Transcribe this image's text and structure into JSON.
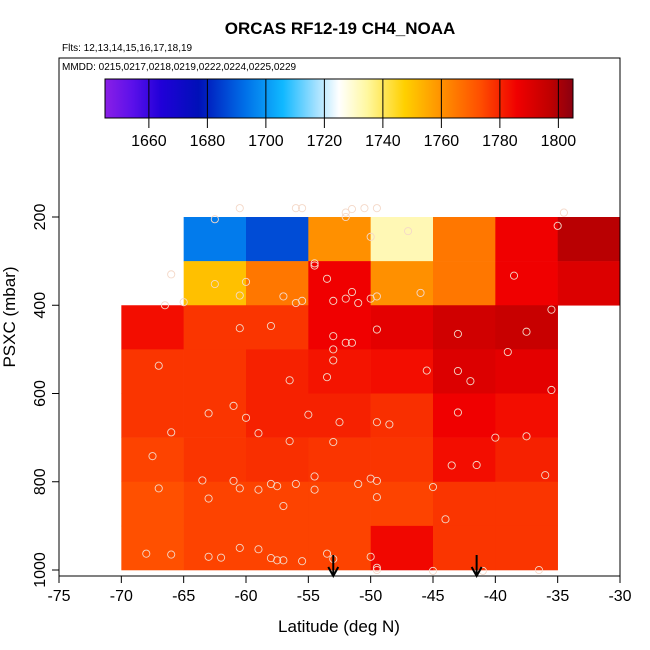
{
  "chart_data": {
    "type": "heatmap",
    "title": "ORCAS RF12-19 CH4_NOAA",
    "subtitle_flights": "Flts: 12,13,14,15,16,17,18,19",
    "subtitle_dates": "MMDD: 0215,0217,0218,0219,0222,0224,0225,0229",
    "xlabel": "Latitude (deg N)",
    "ylabel": "PSXC (mbar)",
    "xlim": [
      -75,
      -30
    ],
    "ylim": [
      1000,
      50
    ],
    "x_ticks": [
      "-75",
      "-70",
      "-65",
      "-60",
      "-55",
      "-50",
      "-45",
      "-40",
      "-35",
      "-30"
    ],
    "x_tick_values": [
      -75,
      -70,
      -65,
      -60,
      -55,
      -50,
      -45,
      -40,
      -35,
      -30
    ],
    "y_ticks": [
      "200",
      "400",
      "600",
      "800",
      "1000"
    ],
    "y_tick_values": [
      200,
      400,
      600,
      800,
      1000
    ],
    "colorbar": {
      "min": 1645,
      "max": 1805,
      "ticks": [
        "1660",
        "1680",
        "1700",
        "1720",
        "1740",
        "1760",
        "1780",
        "1800"
      ],
      "tick_values": [
        1660,
        1680,
        1700,
        1720,
        1740,
        1760,
        1780,
        1800
      ]
    },
    "cell_lat_edges": [
      -70,
      -65,
      -60,
      -55,
      -50,
      -45,
      -40,
      -35,
      -30
    ],
    "cell_p_edges": [
      100,
      200,
      300,
      400,
      500,
      600,
      700,
      800,
      900,
      1000
    ],
    "cells": [
      [
        null,
        null,
        null,
        null,
        null,
        null,
        null,
        null
      ],
      [
        null,
        1695,
        1687,
        1760,
        1730,
        1765,
        1785,
        1798
      ],
      [
        null,
        1747,
        1765,
        1785,
        1760,
        1765,
        1785,
        1790
      ],
      [
        1783,
        1777,
        1777,
        1785,
        1788,
        1793,
        1795,
        null
      ],
      [
        1777,
        1777,
        1780,
        1782,
        1783,
        1790,
        1788,
        null
      ],
      [
        1777,
        1777,
        1780,
        1780,
        1778,
        1785,
        1783,
        null
      ],
      [
        1775,
        1777,
        1778,
        1777,
        1777,
        1783,
        1780,
        null
      ],
      [
        1773,
        1775,
        1775,
        1775,
        1775,
        1777,
        1777,
        null
      ],
      [
        1773,
        1775,
        1775,
        1775,
        1784,
        1777,
        1777,
        null
      ],
      [
        1773,
        1775,
        1775,
        1775,
        1773,
        1775,
        1775,
        null
      ]
    ],
    "grid_rows_pressure_ranges": [
      "100-200",
      "200-300",
      "300-400",
      "400-500",
      "500-600",
      "600-700",
      "700-800",
      "800-900",
      "900-1000"
    ],
    "sample_points": [
      [
        -62.5,
        205
      ],
      [
        -60.5,
        180
      ],
      [
        -56,
        180
      ],
      [
        -55.5,
        180
      ],
      [
        -52,
        190
      ],
      [
        -51.5,
        182
      ],
      [
        -52,
        200
      ],
      [
        -50.5,
        180
      ],
      [
        -49.5,
        180
      ],
      [
        -50,
        245
      ],
      [
        -47,
        232
      ],
      [
        -34.5,
        190
      ],
      [
        -35,
        220
      ],
      [
        -54.5,
        305
      ],
      [
        -54.5,
        310
      ],
      [
        -53.5,
        340
      ],
      [
        -66,
        330
      ],
      [
        -66.5,
        400
      ],
      [
        -65,
        393
      ],
      [
        -62.5,
        352
      ],
      [
        -60,
        347
      ],
      [
        -60.5,
        378
      ],
      [
        -57,
        380
      ],
      [
        -56,
        395
      ],
      [
        -55.5,
        390
      ],
      [
        -53,
        390
      ],
      [
        -52,
        385
      ],
      [
        -51.5,
        370
      ],
      [
        -51,
        395
      ],
      [
        -50,
        385
      ],
      [
        -49.5,
        380
      ],
      [
        -46,
        372
      ],
      [
        -38.5,
        333
      ],
      [
        -35.5,
        410
      ],
      [
        -60.5,
        452
      ],
      [
        -58,
        447
      ],
      [
        -53,
        470
      ],
      [
        -53,
        500
      ],
      [
        -52,
        485
      ],
      [
        -51.5,
        485
      ],
      [
        -49.5,
        455
      ],
      [
        -43,
        465
      ],
      [
        -37.5,
        460
      ],
      [
        -67,
        537
      ],
      [
        -53,
        525
      ],
      [
        -53.5,
        563
      ],
      [
        -56.5,
        570
      ],
      [
        -45.5,
        548
      ],
      [
        -43,
        549
      ],
      [
        -42,
        572
      ],
      [
        -39,
        506
      ],
      [
        -35.5,
        592
      ],
      [
        -66,
        688
      ],
      [
        -63,
        645
      ],
      [
        -61,
        628
      ],
      [
        -60,
        655
      ],
      [
        -59,
        690
      ],
      [
        -56.5,
        708
      ],
      [
        -55,
        648
      ],
      [
        -52.5,
        665
      ],
      [
        -53,
        710
      ],
      [
        -49.5,
        665
      ],
      [
        -48.5,
        670
      ],
      [
        -43,
        643
      ],
      [
        -40,
        700
      ],
      [
        -37.5,
        697
      ],
      [
        -67.5,
        742
      ],
      [
        -67,
        815
      ],
      [
        -63.5,
        797
      ],
      [
        -63,
        838
      ],
      [
        -61,
        798
      ],
      [
        -60.5,
        815
      ],
      [
        -59,
        818
      ],
      [
        -58,
        805
      ],
      [
        -57.5,
        810
      ],
      [
        -56,
        805
      ],
      [
        -57,
        855
      ],
      [
        -54.5,
        788
      ],
      [
        -54.5,
        818
      ],
      [
        -51,
        805
      ],
      [
        -50,
        793
      ],
      [
        -49.5,
        835
      ],
      [
        -49.5,
        798
      ],
      [
        -45,
        812
      ],
      [
        -44,
        885
      ],
      [
        -43.5,
        763
      ],
      [
        -41.5,
        762
      ],
      [
        -36,
        785
      ],
      [
        -68,
        963
      ],
      [
        -66,
        965
      ],
      [
        -63,
        970
      ],
      [
        -62,
        972
      ],
      [
        -60.5,
        950
      ],
      [
        -59,
        953
      ],
      [
        -58,
        973
      ],
      [
        -57.5,
        978
      ],
      [
        -57,
        978
      ],
      [
        -55.5,
        980
      ],
      [
        -53.5,
        963
      ],
      [
        -53,
        975
      ],
      [
        -50,
        970
      ],
      [
        -49.5,
        1000
      ],
      [
        -49.5,
        995
      ],
      [
        -45,
        1002
      ],
      [
        -41,
        1002
      ],
      [
        -36.5,
        1000
      ]
    ],
    "arrows_lat": [
      -53,
      -41.5
    ]
  }
}
